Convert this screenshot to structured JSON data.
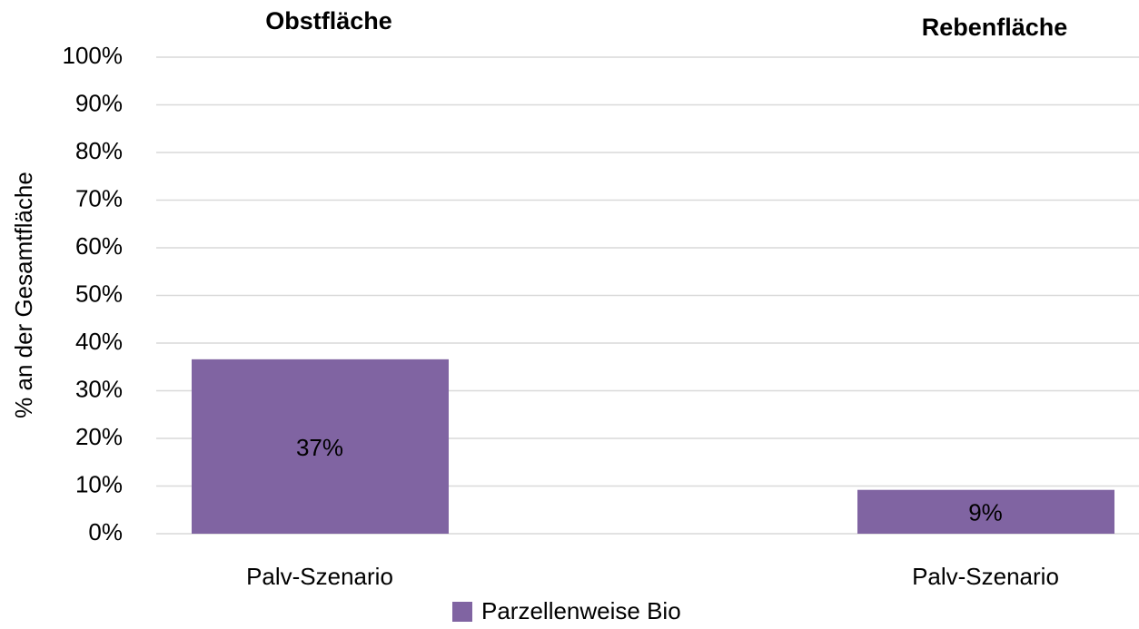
{
  "chart_data": [
    {
      "type": "bar",
      "title": "Obstfläche",
      "ylabel": "% an der Gesamtfläche",
      "categories": [
        "Palv-Szenario"
      ],
      "series": [
        {
          "name": "Parzellenweise Bio",
          "color": "#8064a2",
          "values": [
            36.6
          ],
          "value_labels": [
            "37%"
          ]
        }
      ],
      "ylim": [
        0,
        100
      ],
      "yticks": [
        {
          "value": 0,
          "label": "0%"
        },
        {
          "value": 10,
          "label": "10%"
        },
        {
          "value": 20,
          "label": "20%"
        },
        {
          "value": 30,
          "label": "30%"
        },
        {
          "value": 40,
          "label": "40%"
        },
        {
          "value": 50,
          "label": "50%"
        },
        {
          "value": 60,
          "label": "60%"
        },
        {
          "value": 70,
          "label": "70%"
        },
        {
          "value": 80,
          "label": "80%"
        },
        {
          "value": 90,
          "label": "90%"
        },
        {
          "value": 100,
          "label": "100%"
        }
      ],
      "grid": true
    },
    {
      "type": "bar",
      "title": "Rebenfläche",
      "categories": [
        "Palv-Szenario"
      ],
      "series": [
        {
          "name": "Parzellenweise Bio",
          "color": "#8064a2",
          "values": [
            9.2
          ],
          "value_labels": [
            "9%"
          ]
        }
      ],
      "ylim": [
        0,
        100
      ]
    }
  ]
}
